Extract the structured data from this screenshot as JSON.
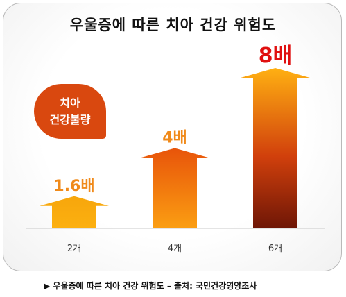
{
  "title": "우울증에 따른 치아 건강 위험도",
  "badge": {
    "line1": "치아",
    "line2": "건강불량"
  },
  "caption": "▶ 우울증에 따른 치아 건강 위험도 – 출처: 국민건강영양조사",
  "colors": {
    "bar_light": "#fcb010",
    "bar_mid": "#f26a10",
    "bar_dark": "#7a1a06",
    "badge": "#d9480f",
    "label_orange": "#f08a1a",
    "label_red": "#e01010"
  },
  "chart_data": {
    "type": "bar",
    "title": "우울증에 따른 치아 건강 위험도",
    "categories": [
      "2개",
      "4개",
      "6개"
    ],
    "values": [
      1.6,
      4,
      8
    ],
    "data_labels": [
      "1.6배",
      "4배",
      "8배"
    ],
    "xlabel": "",
    "ylabel": "",
    "ylim": [
      0,
      8.5
    ],
    "grid": false
  }
}
